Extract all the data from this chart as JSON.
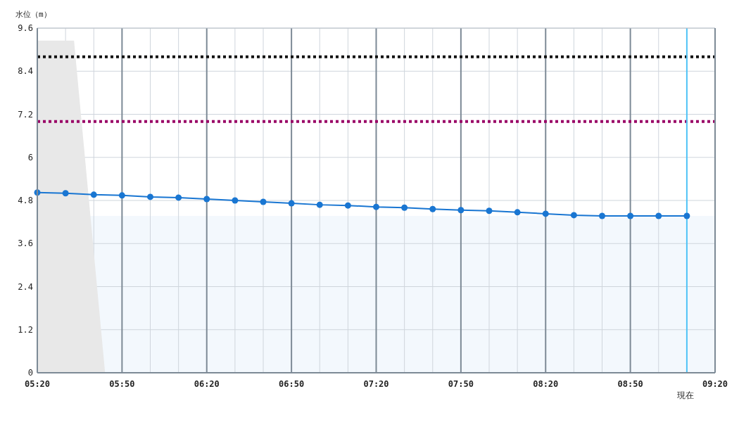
{
  "chart_data": {
    "type": "line",
    "ylabel": "水位（m）",
    "xlim": [
      5.3333,
      9.3333
    ],
    "ylim": [
      0,
      9.6
    ],
    "xticks": [
      {
        "value": 5.3333,
        "label": "05:20"
      },
      {
        "value": 5.5,
        "label": null
      },
      {
        "value": 5.6667,
        "label": null
      },
      {
        "value": 5.8333,
        "label": "05:50"
      },
      {
        "value": 6,
        "label": null
      },
      {
        "value": 6.1667,
        "label": null
      },
      {
        "value": 6.3333,
        "label": "06:20"
      },
      {
        "value": 6.5,
        "label": null
      },
      {
        "value": 6.6667,
        "label": null
      },
      {
        "value": 6.8333,
        "label": "06:50"
      },
      {
        "value": 7,
        "label": null
      },
      {
        "value": 7.1667,
        "label": null
      },
      {
        "value": 7.3333,
        "label": "07:20"
      },
      {
        "value": 7.5,
        "label": null
      },
      {
        "value": 7.6667,
        "label": null
      },
      {
        "value": 7.8333,
        "label": "07:50"
      },
      {
        "value": 8,
        "label": null
      },
      {
        "value": 8.1667,
        "label": null
      },
      {
        "value": 8.3333,
        "label": "08:20"
      },
      {
        "value": 8.5,
        "label": null
      },
      {
        "value": 8.6667,
        "label": null
      },
      {
        "value": 8.8333,
        "label": "08:50"
      },
      {
        "value": 9,
        "label": null
      },
      {
        "value": 9.1667,
        "label": null
      },
      {
        "value": 9.3333,
        "label": "09:20"
      }
    ],
    "yticks": [
      0,
      1.2,
      2.4,
      3.6,
      4.8,
      6,
      7.2,
      8.4,
      9.6
    ],
    "grid": true,
    "line_style": "solid",
    "series": [
      {
        "type": "area",
        "color": "#e8e8e8",
        "x": [
          5.3333,
          5.55,
          5.7333
        ],
        "values": [
          9.25,
          9.25,
          0
        ]
      },
      {
        "color": "#1976d2",
        "marker": "circle",
        "x": [
          5.3333,
          5.5,
          5.6667,
          5.8333,
          6,
          6.1667,
          6.3333,
          6.5,
          6.6667,
          6.8333,
          7,
          7.1667,
          7.3333,
          7.5,
          7.6667,
          7.8333,
          8,
          8.1667,
          8.3333,
          8.5,
          8.6667,
          8.8333,
          9,
          9.1667
        ],
        "values": [
          5.02,
          5.0,
          4.96,
          4.94,
          4.9,
          4.88,
          4.84,
          4.8,
          4.76,
          4.72,
          4.68,
          4.66,
          4.62,
          4.6,
          4.56,
          4.53,
          4.51,
          4.47,
          4.43,
          4.39,
          4.37,
          4.37,
          4.37,
          4.37
        ]
      }
    ],
    "bands": [
      {
        "axis": "y",
        "from": 0,
        "to": 4.37,
        "color": "#f3f8fd"
      }
    ],
    "ref_lines": [
      {
        "axis": "y",
        "value": 8.8,
        "color": "#111111",
        "line_style": "dotted"
      },
      {
        "axis": "y",
        "value": 7.0,
        "color": "#990066",
        "line_style": "dotted"
      },
      {
        "axis": "x",
        "value": 9.1667,
        "label": "現在",
        "color": "#4fc3f7",
        "line_style": "solid"
      }
    ]
  }
}
